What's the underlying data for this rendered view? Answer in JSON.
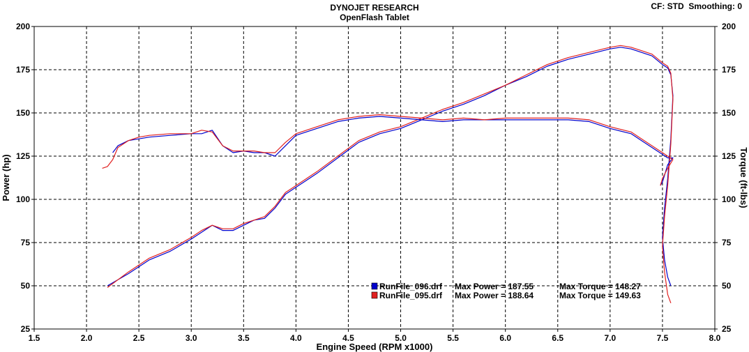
{
  "header": {
    "title": "DYNOJET RESEARCH",
    "subtitle": "OpenFlash Tablet",
    "cf_label": "CF: STD",
    "smoothing_label": "Smoothing: 0"
  },
  "chart_data": {
    "type": "line",
    "xlabel": "Engine Speed (RPM x1000)",
    "ylabel_left": "Power (hp)",
    "ylabel_right": "Torque (ft-lbs)",
    "xlim": [
      1.5,
      8.0
    ],
    "ylim_left": [
      25,
      200
    ],
    "ylim_right": [
      25,
      200
    ],
    "x_ticks": [
      "1.5",
      "2.0",
      "2.5",
      "3.0",
      "3.5",
      "4.0",
      "4.5",
      "5.0",
      "5.5",
      "6.0",
      "6.5",
      "7.0",
      "7.5",
      "8.0"
    ],
    "y_ticks": [
      "25",
      "50",
      "75",
      "100",
      "125",
      "150",
      "175",
      "200"
    ],
    "grid": true,
    "legend": [
      {
        "file": "RunFile_096.drf",
        "power": "Max Power = 187.55",
        "torque": "Max Torque = 148.27",
        "color": "#0000cc"
      },
      {
        "file": "RunFile_095.drf",
        "power": "Max Power = 188.64",
        "torque": "Max Torque = 149.63",
        "color": "#e02020"
      }
    ],
    "series": [
      {
        "name": "RunFile_096.drf",
        "quantity": "power",
        "color": "#0000cc",
        "x": [
          2.2,
          2.4,
          2.6,
          2.8,
          3.0,
          3.1,
          3.2,
          3.3,
          3.4,
          3.5,
          3.6,
          3.7,
          3.8,
          3.9,
          4.0,
          4.1,
          4.2,
          4.4,
          4.6,
          4.8,
          5.0,
          5.2,
          5.4,
          5.6,
          5.8,
          6.0,
          6.2,
          6.4,
          6.6,
          6.8,
          7.0,
          7.1,
          7.2,
          7.3,
          7.4,
          7.5,
          7.55,
          7.58,
          7.6,
          7.58,
          7.55,
          7.52,
          7.5,
          7.52,
          7.55,
          7.58
        ],
        "y": [
          50,
          57,
          65,
          70,
          77,
          81,
          85,
          82,
          82,
          85,
          88,
          89,
          95,
          103,
          107,
          111,
          115,
          124,
          133,
          138,
          141,
          146,
          151,
          155,
          160,
          166,
          171,
          177,
          181,
          184,
          187,
          188,
          187,
          185,
          183,
          178,
          176,
          172,
          160,
          135,
          112,
          95,
          78,
          65,
          55,
          50
        ]
      },
      {
        "name": "RunFile_095.drf",
        "quantity": "power",
        "color": "#e02020",
        "x": [
          2.2,
          2.4,
          2.6,
          2.8,
          3.0,
          3.1,
          3.2,
          3.3,
          3.4,
          3.5,
          3.6,
          3.7,
          3.8,
          3.9,
          4.0,
          4.1,
          4.2,
          4.4,
          4.6,
          4.8,
          5.0,
          5.2,
          5.4,
          5.6,
          5.8,
          6.0,
          6.2,
          6.4,
          6.6,
          6.8,
          7.0,
          7.1,
          7.2,
          7.3,
          7.4,
          7.5,
          7.55,
          7.58,
          7.6,
          7.58,
          7.55,
          7.52,
          7.5,
          7.52,
          7.55,
          7.58
        ],
        "y": [
          49,
          58,
          66,
          71,
          78,
          82,
          85,
          83,
          83,
          86,
          88,
          90,
          96,
          104,
          108,
          112,
          116,
          125,
          134,
          139,
          142,
          147,
          152,
          156,
          161,
          166,
          172,
          178,
          182,
          185,
          188,
          189,
          188,
          186,
          184,
          179,
          177,
          173,
          158,
          132,
          108,
          90,
          73,
          58,
          45,
          40
        ]
      },
      {
        "name": "RunFile_096.drf",
        "quantity": "torque",
        "color": "#0000cc",
        "x": [
          2.25,
          2.3,
          2.4,
          2.5,
          2.6,
          2.8,
          3.0,
          3.1,
          3.2,
          3.3,
          3.4,
          3.5,
          3.6,
          3.7,
          3.8,
          3.9,
          4.0,
          4.2,
          4.4,
          4.6,
          4.8,
          5.0,
          5.2,
          5.4,
          5.6,
          5.8,
          6.0,
          6.2,
          6.4,
          6.6,
          6.8,
          7.0,
          7.2,
          7.3,
          7.4,
          7.5,
          7.55,
          7.6,
          7.55,
          7.5,
          7.48
        ],
        "y": [
          127,
          131,
          134,
          135,
          136,
          137,
          138,
          138,
          140,
          131,
          127,
          128,
          127,
          127,
          125,
          131,
          137,
          141,
          145,
          147,
          148,
          147,
          146,
          145,
          146,
          146,
          146,
          146,
          146,
          146,
          145,
          141,
          138,
          134,
          130,
          126,
          124,
          124,
          120,
          110,
          108
        ]
      },
      {
        "name": "RunFile_095.drf",
        "quantity": "torque",
        "color": "#e02020",
        "x": [
          2.15,
          2.2,
          2.25,
          2.3,
          2.4,
          2.5,
          2.6,
          2.8,
          3.0,
          3.1,
          3.2,
          3.3,
          3.4,
          3.5,
          3.6,
          3.7,
          3.8,
          3.9,
          4.0,
          4.2,
          4.4,
          4.6,
          4.8,
          5.0,
          5.2,
          5.4,
          5.6,
          5.8,
          6.0,
          6.2,
          6.4,
          6.6,
          6.8,
          7.0,
          7.2,
          7.3,
          7.4,
          7.5,
          7.55,
          7.6,
          7.55,
          7.5,
          7.48
        ],
        "y": [
          118,
          119,
          123,
          130,
          134,
          136,
          137,
          138,
          138,
          140,
          139,
          131,
          128,
          128,
          128,
          127,
          127,
          133,
          138,
          142,
          146,
          148,
          149,
          148,
          147,
          146,
          147,
          146,
          147,
          147,
          147,
          147,
          146,
          142,
          139,
          135,
          131,
          127,
          125,
          123,
          118,
          112,
          108
        ]
      }
    ]
  }
}
